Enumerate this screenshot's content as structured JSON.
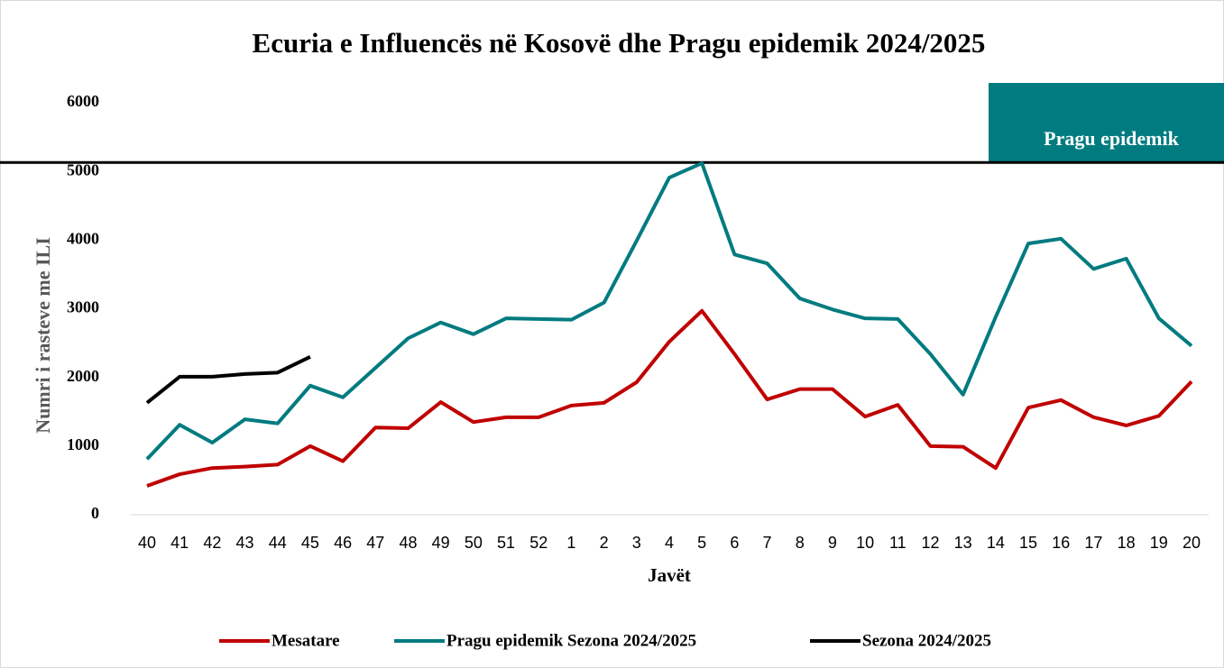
{
  "chart_data": {
    "type": "line",
    "title": "Ecuria e Influencës në Kosovë dhe Pragu epidemik 2024/2025",
    "x_label": "Javët",
    "y_label": "Numri i rasteve me ILI",
    "categories": [
      "40",
      "41",
      "42",
      "43",
      "44",
      "45",
      "46",
      "47",
      "48",
      "49",
      "50",
      "51",
      "52",
      "1",
      "2",
      "3",
      "4",
      "5",
      "6",
      "7",
      "8",
      "9",
      "10",
      "11",
      "12",
      "13",
      "14",
      "15",
      "16",
      "17",
      "18",
      "19",
      "20"
    ],
    "series": [
      {
        "name": "Mesatare",
        "color": "#c00000",
        "values": [
          420,
          590,
          680,
          700,
          730,
          1000,
          780,
          1270,
          1260,
          1640,
          1350,
          1420,
          1420,
          1590,
          1630,
          1930,
          2520,
          2970,
          2340,
          1680,
          1830,
          1830,
          1430,
          1600,
          1000,
          990,
          680,
          1560,
          1670,
          1420,
          1300,
          1440,
          1940
        ]
      },
      {
        "name": "Pragu epidemik Sezona 2024/2025",
        "color": "#007b7f",
        "values": [
          810,
          1310,
          1050,
          1390,
          1330,
          1880,
          1710,
          2140,
          2570,
          2800,
          2630,
          2860,
          2850,
          2840,
          3090,
          3990,
          4910,
          5120,
          3790,
          3660,
          3150,
          2990,
          2860,
          2850,
          2340,
          1750,
          2880,
          3950,
          4020,
          3580,
          3730,
          2860,
          2460
        ]
      },
      {
        "name": "Sezona 2024/2025",
        "color": "#000000",
        "values": [
          1630,
          2010,
          2010,
          2050,
          2070,
          2300,
          null,
          null,
          null,
          null,
          null,
          null,
          null,
          null,
          null,
          null,
          null,
          null,
          null,
          null,
          null,
          null,
          null,
          null,
          null,
          null,
          null,
          null,
          null,
          null,
          null,
          null,
          null
        ]
      }
    ],
    "threshold": {
      "value": 5130,
      "label": "Pragu epidemik",
      "color": "#007c80"
    },
    "ylim": [
      0,
      6000
    ],
    "yticks": [
      0,
      1000,
      2000,
      3000,
      4000,
      5000,
      6000
    ],
    "legend": "bottom"
  }
}
